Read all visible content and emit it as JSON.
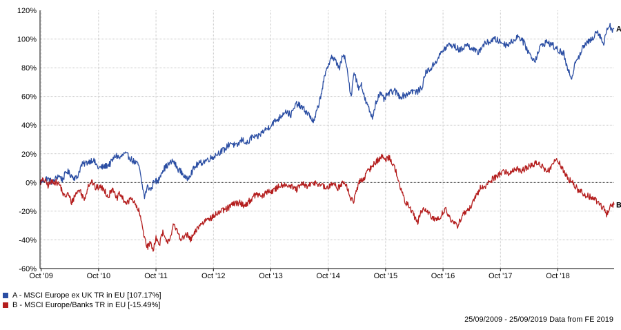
{
  "chart_data": {
    "type": "line",
    "title": "",
    "xlabel": "",
    "ylabel": "",
    "ylim": [
      -60,
      120
    ],
    "yticks": [
      -60,
      -40,
      -20,
      0,
      20,
      40,
      60,
      80,
      100,
      120
    ],
    "ytick_labels": [
      "-60%",
      "-40%",
      "-20%",
      "0%",
      "20%",
      "40%",
      "60%",
      "80%",
      "100%",
      "120%"
    ],
    "xlim": [
      2009.73,
      2019.73
    ],
    "xticks": [
      2009.75,
      2010.75,
      2011.75,
      2012.75,
      2013.75,
      2014.75,
      2015.75,
      2016.75,
      2017.75,
      2018.75
    ],
    "xtick_labels": [
      "Oct '09",
      "Oct '10",
      "Oct '11",
      "Oct '12",
      "Oct '13",
      "Oct '14",
      "Oct '15",
      "Oct '16",
      "Oct '17",
      "Oct '18"
    ],
    "grid": true,
    "legend_position": "bottom-left",
    "series": [
      {
        "name": "A - MSCI Europe ex UK TR in EU [107.17%]",
        "end_label": "A",
        "color": "#2b4ea3",
        "x": [
          2009.73,
          2009.85,
          2009.95,
          2010.05,
          2010.12,
          2010.2,
          2010.3,
          2010.37,
          2010.45,
          2010.55,
          2010.65,
          2010.75,
          2010.85,
          2010.95,
          2011.05,
          2011.12,
          2011.2,
          2011.28,
          2011.35,
          2011.45,
          2011.5,
          2011.55,
          2011.6,
          2011.67,
          2011.72,
          2011.78,
          2011.85,
          2011.95,
          2012.05,
          2012.12,
          2012.2,
          2012.28,
          2012.35,
          2012.45,
          2012.55,
          2012.65,
          2012.75,
          2012.85,
          2012.95,
          2013.05,
          2013.15,
          2013.25,
          2013.35,
          2013.42,
          2013.5,
          2013.6,
          2013.7,
          2013.8,
          2013.9,
          2014.0,
          2014.1,
          2014.2,
          2014.3,
          2014.4,
          2014.5,
          2014.6,
          2014.68,
          2014.75,
          2014.8,
          2014.87,
          2014.95,
          2015.0,
          2015.05,
          2015.1,
          2015.15,
          2015.2,
          2015.28,
          2015.32,
          2015.38,
          2015.45,
          2015.52,
          2015.58,
          2015.65,
          2015.72,
          2015.8,
          2015.9,
          2016.0,
          2016.1,
          2016.2,
          2016.3,
          2016.38,
          2016.45,
          2016.55,
          2016.65,
          2016.75,
          2016.85,
          2016.95,
          2017.05,
          2017.15,
          2017.25,
          2017.35,
          2017.45,
          2017.55,
          2017.65,
          2017.75,
          2017.85,
          2017.95,
          2018.05,
          2018.12,
          2018.2,
          2018.28,
          2018.35,
          2018.45,
          2018.55,
          2018.65,
          2018.75,
          2018.85,
          2018.92,
          2019.0,
          2019.05,
          2019.12,
          2019.2,
          2019.28,
          2019.35,
          2019.42,
          2019.48,
          2019.55,
          2019.6,
          2019.65,
          2019.7,
          2019.73
        ],
        "y": [
          0,
          3,
          0,
          5,
          2,
          8,
          4,
          3,
          12,
          14,
          16,
          10,
          11,
          13,
          19,
          17,
          20,
          18,
          15,
          12,
          0,
          -10,
          -3,
          -5,
          2,
          0,
          8,
          12,
          15,
          10,
          7,
          2,
          6,
          12,
          14,
          16,
          18,
          21,
          23,
          28,
          25,
          30,
          27,
          32,
          31,
          35,
          38,
          42,
          45,
          50,
          47,
          55,
          52,
          48,
          42,
          57,
          72,
          82,
          88,
          85,
          80,
          88,
          86,
          72,
          60,
          78,
          65,
          70,
          59,
          52,
          45,
          56,
          62,
          58,
          62,
          64,
          60,
          61,
          64,
          63,
          66,
          77,
          80,
          86,
          92,
          96,
          95,
          92,
          96,
          94,
          90,
          96,
          98,
          100,
          98,
          96,
          98,
          102,
          100,
          94,
          88,
          85,
          95,
          98,
          96,
          92,
          90,
          78,
          73,
          85,
          88,
          95,
          98,
          100,
          106,
          103,
          96,
          107,
          110,
          106,
          107.17
        ]
      },
      {
        "name": "B - MSCI Europe/Banks TR in EU [-15.49%]",
        "end_label": "B",
        "color": "#b41e1e",
        "x": [
          2009.73,
          2009.8,
          2009.87,
          2009.95,
          2010.02,
          2010.08,
          2010.15,
          2010.22,
          2010.28,
          2010.35,
          2010.42,
          2010.5,
          2010.57,
          2010.63,
          2010.7,
          2010.77,
          2010.85,
          2010.92,
          2011.0,
          2011.05,
          2011.12,
          2011.18,
          2011.25,
          2011.32,
          2011.38,
          2011.45,
          2011.5,
          2011.55,
          2011.6,
          2011.65,
          2011.7,
          2011.75,
          2011.8,
          2011.87,
          2011.93,
          2012.0,
          2012.05,
          2012.12,
          2012.2,
          2012.28,
          2012.35,
          2012.42,
          2012.5,
          2012.58,
          2012.65,
          2012.72,
          2012.8,
          2012.9,
          2013.0,
          2013.1,
          2013.2,
          2013.3,
          2013.4,
          2013.5,
          2013.6,
          2013.7,
          2013.8,
          2013.9,
          2014.0,
          2014.1,
          2014.2,
          2014.3,
          2014.4,
          2014.5,
          2014.6,
          2014.7,
          2014.78,
          2014.85,
          2014.92,
          2015.0,
          2015.08,
          2015.12,
          2015.2,
          2015.28,
          2015.35,
          2015.4,
          2015.45,
          2015.52,
          2015.6,
          2015.68,
          2015.75,
          2015.82,
          2015.88,
          2015.95,
          2016.02,
          2016.1,
          2016.2,
          2016.3,
          2016.4,
          2016.5,
          2016.6,
          2016.7,
          2016.8,
          2016.9,
          2017.0,
          2017.1,
          2017.2,
          2017.3,
          2017.4,
          2017.5,
          2017.6,
          2017.7,
          2017.8,
          2017.9,
          2018.0,
          2018.1,
          2018.2,
          2018.3,
          2018.4,
          2018.5,
          2018.6,
          2018.7,
          2018.8,
          2018.9,
          2019.0,
          2019.1,
          2019.2,
          2019.3,
          2019.4,
          2019.5,
          2019.55,
          2019.6,
          2019.65,
          2019.7,
          2019.73
        ],
        "y": [
          0,
          2,
          -2,
          1,
          0,
          -2,
          -10,
          -8,
          -14,
          -8,
          -5,
          -12,
          -2,
          1,
          -4,
          -3,
          -5,
          -10,
          -3,
          -12,
          -8,
          -12,
          -15,
          -10,
          -15,
          -20,
          -28,
          -38,
          -45,
          -42,
          -47,
          -38,
          -44,
          -35,
          -42,
          -38,
          -30,
          -34,
          -40,
          -36,
          -40,
          -36,
          -30,
          -28,
          -24,
          -25,
          -22,
          -20,
          -18,
          -15,
          -14,
          -16,
          -12,
          -8,
          -10,
          -6,
          -6,
          -2,
          -1,
          -3,
          -5,
          -1,
          -3,
          0,
          -1,
          -4,
          -3,
          0,
          -4,
          0,
          -3,
          -10,
          -13,
          0,
          2,
          5,
          8,
          12,
          15,
          18,
          16,
          18,
          12,
          6,
          -6,
          -14,
          -19,
          -28,
          -18,
          -22,
          -26,
          -24,
          -18,
          -28,
          -30,
          -22,
          -19,
          -12,
          -4,
          -2,
          2,
          5,
          8,
          6,
          10,
          8,
          10,
          12,
          14,
          10,
          8,
          16,
          12,
          4,
          0,
          -5,
          -8,
          -10,
          -12,
          -16,
          -18,
          -22,
          -18,
          -15,
          -15.49
        ]
      }
    ],
    "date_range": "25/09/2009 - 25/09/2019",
    "source": "Data from FE 2019"
  },
  "legend": {
    "items": [
      {
        "label": "A - MSCI Europe ex UK TR in EU [107.17%]",
        "color": "#2b4ea3"
      },
      {
        "label": "B - MSCI Europe/Banks TR in EU [-15.49%]",
        "color": "#b41e1e"
      }
    ]
  },
  "footer": {
    "text": "25/09/2009 - 25/09/2019 Data from FE 2019"
  }
}
